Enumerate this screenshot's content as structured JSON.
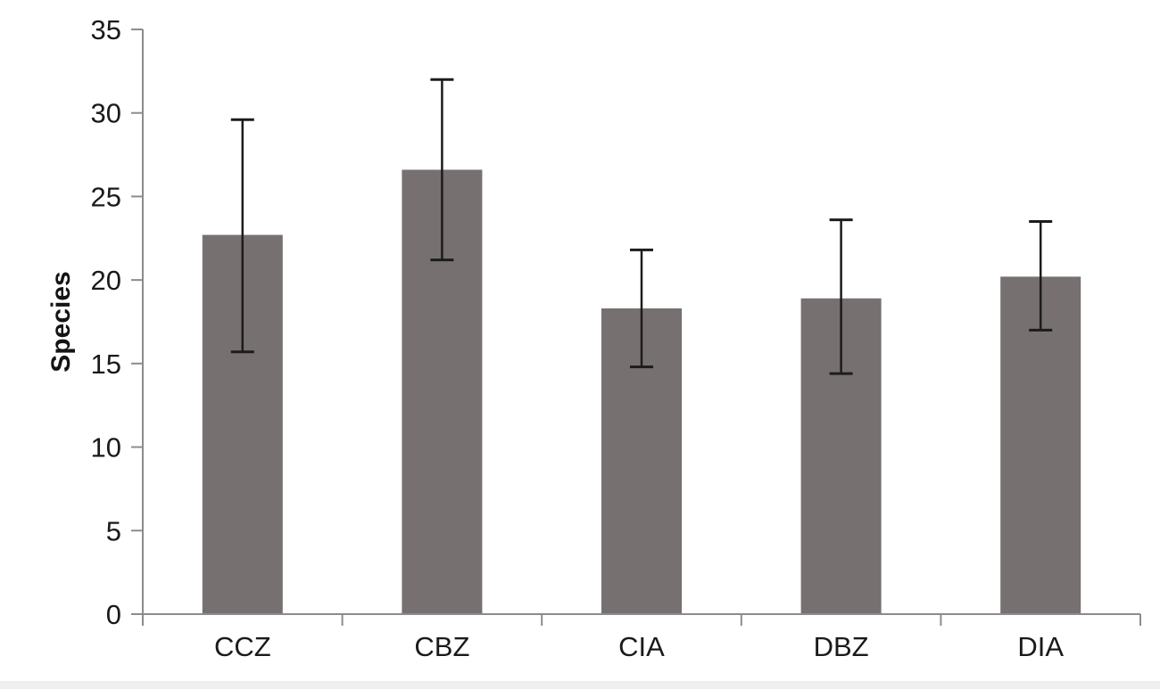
{
  "chart_data": {
    "type": "bar",
    "ylabel": "Species",
    "categories": [
      "CCZ",
      "CBZ",
      "CIA",
      "DBZ",
      "DIA"
    ],
    "values": [
      22.7,
      26.6,
      18.3,
      18.9,
      20.2
    ],
    "error_bars": {
      "upper": [
        29.6,
        32.0,
        21.8,
        23.6,
        23.5
      ],
      "lower": [
        15.7,
        21.2,
        14.8,
        14.4,
        17.0
      ]
    },
    "ylim": [
      0,
      35
    ],
    "ytick_step": 5,
    "yticks": [
      "0",
      "5",
      "10",
      "15",
      "20",
      "25",
      "30",
      "35"
    ],
    "grid": false,
    "legend": "none",
    "colors": {
      "bar_fill": "#767070",
      "error_bar": "#1c1c1c",
      "axis_line": "#8c8c8c",
      "tick_text": "#1a1a1a",
      "background": "#ffffff",
      "bottom_edge_strip": "#f0eff0"
    }
  }
}
